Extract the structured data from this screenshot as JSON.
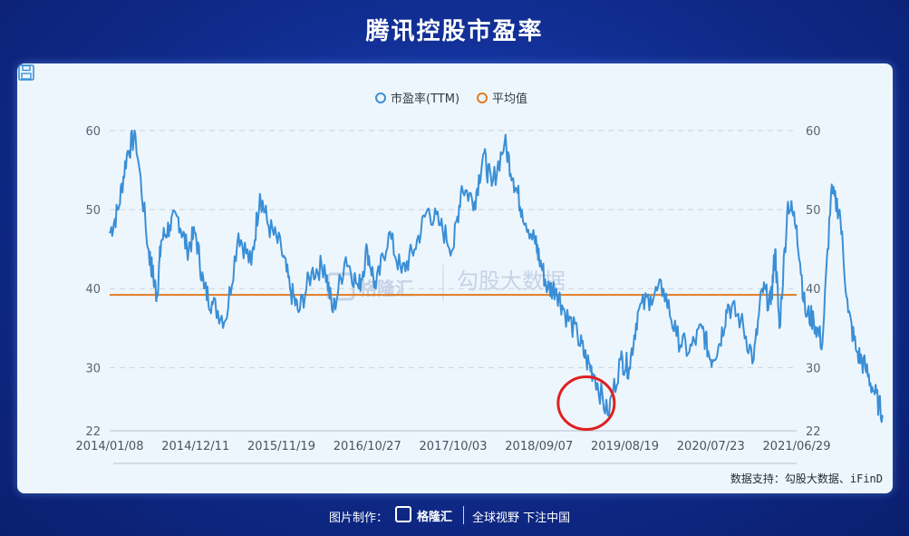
{
  "page_title": "腾讯控股市盈率",
  "icons": {
    "save": "save-icon",
    "logo": "gelonghui-logo-icon"
  },
  "source_note": "数据支持：勾股大数据、iFinD",
  "watermark": {
    "brand": "格隆汇",
    "subtitle": "勾股大数据"
  },
  "footer": {
    "made_by": "图片制作：",
    "brand": "格隆汇",
    "slogan": "全球视野 下注中国"
  },
  "colors": {
    "series": "#3a8fd6",
    "average": "#e07b22",
    "annotation": "#e02020"
  },
  "chart_data": {
    "type": "line",
    "title": "",
    "xlabel": "",
    "ylabel": "",
    "ylim": [
      22,
      60
    ],
    "yticks": [
      22,
      30,
      40,
      50,
      60
    ],
    "xticks": [
      "2014/01/08",
      "2014/12/11",
      "2015/11/19",
      "2016/10/27",
      "2017/10/03",
      "2018/09/07",
      "2019/08/19",
      "2020/07/23",
      "2021/06/29"
    ],
    "legend": {
      "position": "top-center",
      "entries": [
        "市盈率(TTM)",
        "平均值"
      ]
    },
    "grid": "horizontal-dashed",
    "series": [
      {
        "name": "市盈率(TTM)",
        "x_index": [
          0,
          0.1,
          0.2,
          0.3,
          0.45,
          0.5,
          0.55,
          0.6,
          0.7,
          0.8,
          0.9,
          1.0,
          1.1,
          1.2,
          1.35,
          1.5,
          1.65,
          1.75,
          1.85,
          2.0,
          2.1,
          2.2,
          2.35,
          2.5,
          2.6,
          2.75,
          2.9,
          3.0,
          3.1,
          3.25,
          3.4,
          3.55,
          3.7,
          3.85,
          4.0,
          4.1,
          4.25,
          4.35,
          4.45,
          4.6,
          4.7,
          4.8,
          4.95,
          5.0,
          5.1,
          5.2,
          5.3,
          5.45,
          5.55,
          5.65,
          5.8,
          5.95,
          6.05,
          6.15,
          6.3,
          6.45,
          6.6,
          6.75,
          6.9,
          7.0,
          7.1,
          7.2,
          7.35,
          7.5,
          7.6,
          7.7,
          7.75,
          7.8,
          7.9,
          8.0
        ],
        "values": [
          47,
          50,
          57,
          59.5,
          45,
          42,
          39,
          46,
          48,
          49,
          45,
          47,
          40,
          38,
          36,
          47,
          43,
          52,
          48,
          45,
          40,
          37,
          42,
          43,
          37,
          44,
          40,
          45,
          40,
          47,
          42,
          45,
          50,
          48,
          45,
          53,
          51,
          57,
          53,
          58.5,
          54,
          50,
          46,
          44,
          40,
          40,
          37,
          34,
          31,
          29,
          24,
          31,
          30,
          37,
          39,
          40,
          34,
          32,
          35,
          31,
          33,
          38,
          36,
          31,
          40,
          38,
          45,
          35,
          51,
          48
        ]
      },
      {
        "name": "平均值",
        "values": [
          39.2
        ]
      }
    ],
    "tail": {
      "x_index": [
        8.0,
        8.1,
        8.2,
        8.3,
        8.4,
        8.5,
        8.6,
        8.7,
        8.8,
        8.9,
        9.0
      ],
      "values": [
        48,
        37,
        36,
        33,
        52,
        50,
        37,
        32,
        30,
        27,
        24
      ]
    },
    "annotation": {
      "shape": "circle",
      "x_index": 5.55,
      "y": 25.5
    }
  }
}
